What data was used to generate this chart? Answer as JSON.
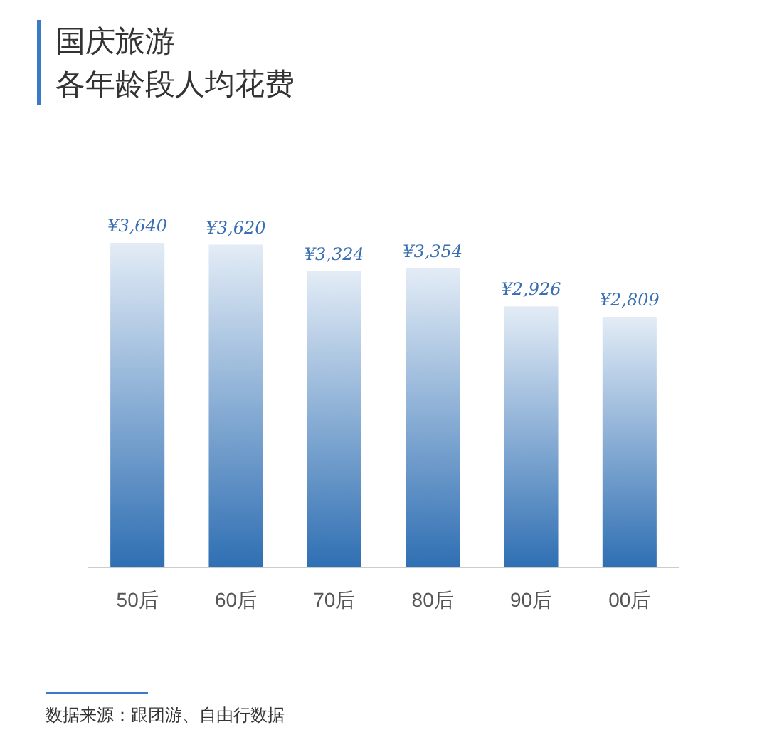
{
  "chart_data": {
    "type": "bar",
    "title": "国庆旅游",
    "subtitle": "各年龄段人均花费",
    "categories": [
      "50后",
      "60后",
      "70后",
      "80后",
      "90后",
      "00后"
    ],
    "values": [
      3640,
      3620,
      3324,
      3354,
      2926,
      2809
    ],
    "value_labels": [
      "¥3,640",
      "¥3,620",
      "¥3,324",
      "¥3,354",
      "¥2,926",
      "¥2,809"
    ],
    "color": "#2f6fb3",
    "annotations": [
      "数据来源：跟团游、自由行数据"
    ]
  }
}
